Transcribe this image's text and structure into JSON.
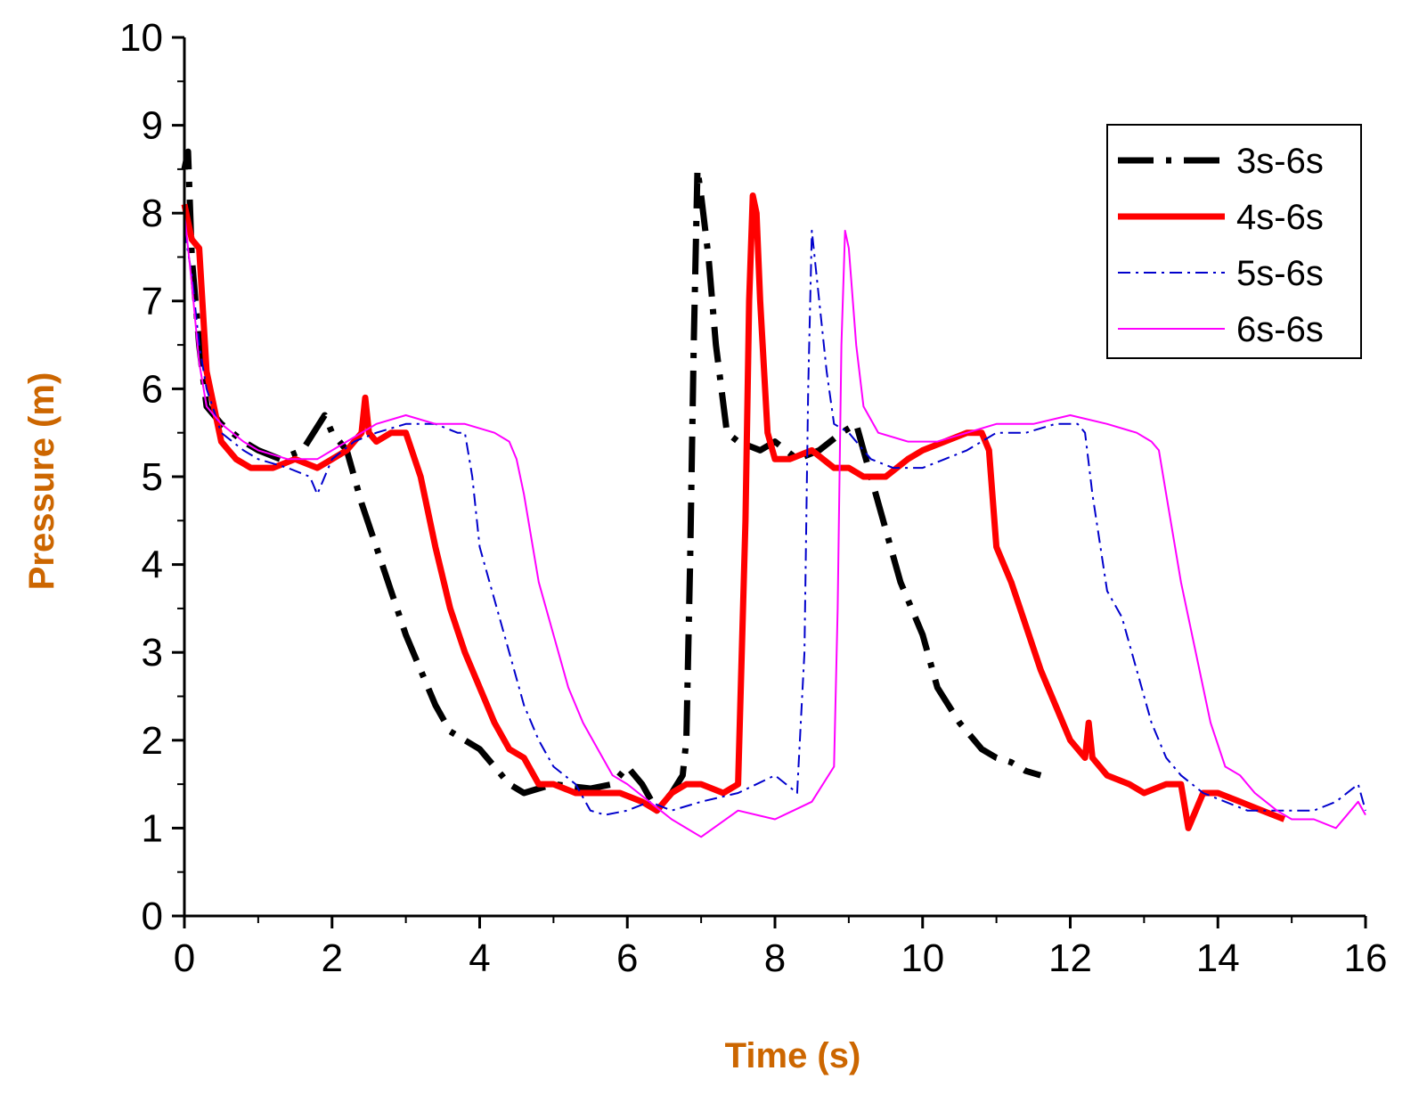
{
  "chart_data": {
    "type": "line",
    "title": "",
    "xlabel": "Time (s)",
    "ylabel": "Pressure (m)",
    "xlim": [
      0,
      16
    ],
    "ylim": [
      0,
      10
    ],
    "xticks": [
      0,
      2,
      4,
      6,
      8,
      10,
      12,
      14,
      16
    ],
    "yticks": [
      0,
      1,
      2,
      3,
      4,
      5,
      6,
      7,
      8,
      9,
      10
    ],
    "grid": false,
    "legend_position": "top-right",
    "axis_label_color": "#cc6600",
    "series": [
      {
        "name": "3s-6s",
        "color": "#000000",
        "style": "dash-dot-thick",
        "x": [
          0.0,
          0.05,
          0.1,
          0.2,
          0.3,
          0.5,
          0.8,
          1.0,
          1.3,
          1.6,
          1.9,
          2.0,
          2.2,
          2.4,
          2.6,
          2.8,
          3.0,
          3.2,
          3.4,
          3.6,
          3.8,
          4.0,
          4.2,
          4.4,
          4.6,
          4.8,
          5.0,
          5.5,
          5.8,
          6.0,
          6.2,
          6.4,
          6.6,
          6.75,
          6.8,
          6.85,
          6.9,
          6.95,
          7.0,
          7.1,
          7.2,
          7.35,
          7.5,
          7.8,
          8.0,
          8.3,
          8.6,
          8.9,
          9.1,
          9.2,
          9.3,
          9.5,
          9.7,
          10.0,
          10.2,
          10.5,
          10.8,
          11.0,
          11.2,
          11.4,
          11.6
        ],
        "y": [
          8.5,
          8.7,
          7.5,
          6.5,
          5.8,
          5.6,
          5.4,
          5.3,
          5.2,
          5.3,
          5.7,
          5.5,
          5.3,
          4.7,
          4.2,
          3.7,
          3.2,
          2.8,
          2.4,
          2.1,
          2.0,
          1.9,
          1.7,
          1.5,
          1.4,
          1.45,
          1.5,
          1.45,
          1.5,
          1.7,
          1.5,
          1.2,
          1.4,
          1.6,
          2.0,
          4.0,
          6.5,
          8.5,
          8.2,
          7.5,
          6.5,
          5.5,
          5.4,
          5.3,
          5.4,
          5.2,
          5.3,
          5.5,
          5.6,
          5.3,
          5.0,
          4.4,
          3.8,
          3.2,
          2.6,
          2.2,
          1.9,
          1.8,
          1.75,
          1.65,
          1.6
        ]
      },
      {
        "name": "4s-6s",
        "color": "#ff0000",
        "style": "solid-thick",
        "x": [
          0.0,
          0.1,
          0.2,
          0.3,
          0.5,
          0.7,
          0.9,
          1.2,
          1.5,
          1.8,
          2.0,
          2.2,
          2.4,
          2.45,
          2.5,
          2.6,
          2.8,
          3.0,
          3.2,
          3.4,
          3.6,
          3.8,
          4.0,
          4.2,
          4.4,
          4.6,
          4.8,
          5.0,
          5.3,
          5.6,
          5.9,
          6.2,
          6.4,
          6.6,
          6.8,
          7.0,
          7.3,
          7.5,
          7.6,
          7.65,
          7.7,
          7.75,
          7.8,
          7.9,
          8.0,
          8.2,
          8.5,
          8.8,
          9.0,
          9.2,
          9.5,
          9.8,
          10.0,
          10.3,
          10.6,
          10.8,
          10.9,
          11.0,
          11.2,
          11.4,
          11.6,
          11.8,
          12.0,
          12.2,
          12.25,
          12.3,
          12.5,
          12.8,
          13.0,
          13.3,
          13.5,
          13.6,
          13.8,
          14.0,
          14.3,
          14.6,
          14.9
        ],
        "y": [
          8.1,
          7.7,
          7.6,
          6.2,
          5.4,
          5.2,
          5.1,
          5.1,
          5.2,
          5.1,
          5.2,
          5.3,
          5.5,
          5.9,
          5.5,
          5.4,
          5.5,
          5.5,
          5.0,
          4.2,
          3.5,
          3.0,
          2.6,
          2.2,
          1.9,
          1.8,
          1.5,
          1.5,
          1.4,
          1.4,
          1.4,
          1.3,
          1.2,
          1.4,
          1.5,
          1.5,
          1.4,
          1.5,
          4.5,
          7.0,
          8.2,
          8.0,
          7.0,
          5.5,
          5.2,
          5.2,
          5.3,
          5.1,
          5.1,
          5.0,
          5.0,
          5.2,
          5.3,
          5.4,
          5.5,
          5.5,
          5.3,
          4.2,
          3.8,
          3.3,
          2.8,
          2.4,
          2.0,
          1.8,
          2.2,
          1.8,
          1.6,
          1.5,
          1.4,
          1.5,
          1.5,
          1.0,
          1.4,
          1.4,
          1.3,
          1.2,
          1.1
        ]
      },
      {
        "name": "5s-6s",
        "color": "#0000cc",
        "style": "dash-dot-thin",
        "x": [
          0.0,
          0.1,
          0.2,
          0.3,
          0.5,
          0.8,
          1.0,
          1.4,
          1.7,
          1.8,
          2.0,
          2.3,
          2.6,
          3.0,
          3.4,
          3.7,
          3.8,
          3.9,
          4.0,
          4.2,
          4.4,
          4.6,
          4.8,
          5.0,
          5.3,
          5.5,
          5.7,
          6.0,
          6.3,
          6.6,
          7.0,
          7.5,
          8.0,
          8.3,
          8.4,
          8.45,
          8.5,
          8.6,
          8.7,
          8.8,
          9.0,
          9.3,
          9.6,
          10.0,
          10.3,
          10.6,
          11.0,
          11.4,
          11.8,
          12.1,
          12.2,
          12.3,
          12.5,
          12.7,
          12.9,
          13.1,
          13.3,
          13.5,
          13.8,
          14.1,
          14.4,
          14.7,
          15.0,
          15.3,
          15.6,
          15.9,
          16.0
        ],
        "y": [
          7.8,
          7.3,
          6.5,
          6.0,
          5.5,
          5.3,
          5.2,
          5.1,
          5.0,
          4.8,
          5.2,
          5.4,
          5.5,
          5.6,
          5.6,
          5.5,
          5.5,
          5.0,
          4.2,
          3.6,
          3.0,
          2.4,
          2.0,
          1.7,
          1.5,
          1.2,
          1.15,
          1.2,
          1.3,
          1.2,
          1.3,
          1.4,
          1.6,
          1.4,
          3.0,
          6.0,
          7.8,
          7.0,
          6.2,
          5.6,
          5.5,
          5.2,
          5.1,
          5.1,
          5.2,
          5.3,
          5.5,
          5.5,
          5.6,
          5.6,
          5.5,
          4.8,
          3.7,
          3.4,
          2.8,
          2.2,
          1.8,
          1.6,
          1.4,
          1.3,
          1.2,
          1.2,
          1.2,
          1.2,
          1.3,
          1.5,
          1.2
        ]
      },
      {
        "name": "6s-6s",
        "color": "#ff00ff",
        "style": "solid-thin",
        "x": [
          0.0,
          0.1,
          0.2,
          0.3,
          0.5,
          0.8,
          1.0,
          1.4,
          1.8,
          2.2,
          2.6,
          3.0,
          3.4,
          3.8,
          4.2,
          4.4,
          4.5,
          4.6,
          4.8,
          5.0,
          5.2,
          5.4,
          5.6,
          5.8,
          6.0,
          6.3,
          6.6,
          7.0,
          7.5,
          8.0,
          8.5,
          8.8,
          8.85,
          8.9,
          8.95,
          9.0,
          9.1,
          9.2,
          9.4,
          9.8,
          10.2,
          10.6,
          11.0,
          11.5,
          12.0,
          12.5,
          12.9,
          13.1,
          13.2,
          13.3,
          13.5,
          13.7,
          13.9,
          14.1,
          14.3,
          14.5,
          14.8,
          15.0,
          15.3,
          15.6,
          15.9,
          16.0
        ],
        "y": [
          8.0,
          7.2,
          6.3,
          5.8,
          5.6,
          5.4,
          5.3,
          5.2,
          5.2,
          5.4,
          5.6,
          5.7,
          5.6,
          5.6,
          5.5,
          5.4,
          5.2,
          4.8,
          3.8,
          3.2,
          2.6,
          2.2,
          1.9,
          1.6,
          1.5,
          1.3,
          1.1,
          0.9,
          1.2,
          1.1,
          1.3,
          1.7,
          3.5,
          6.5,
          7.8,
          7.6,
          6.5,
          5.8,
          5.5,
          5.4,
          5.4,
          5.5,
          5.6,
          5.6,
          5.7,
          5.6,
          5.5,
          5.4,
          5.3,
          4.8,
          3.8,
          3.0,
          2.2,
          1.7,
          1.6,
          1.4,
          1.2,
          1.1,
          1.1,
          1.0,
          1.3,
          1.15
        ]
      }
    ]
  }
}
